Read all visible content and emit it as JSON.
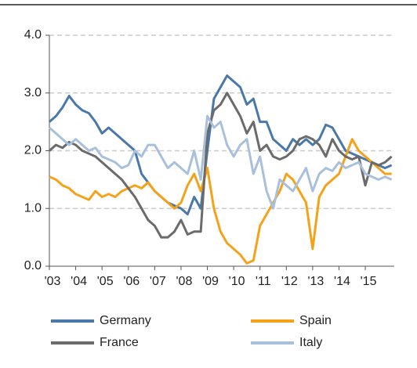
{
  "chart_data": {
    "type": "line",
    "x": [
      2003,
      2003.25,
      2003.5,
      2003.75,
      2004,
      2004.25,
      2004.5,
      2004.75,
      2005,
      2005.25,
      2005.5,
      2005.75,
      2006,
      2006.25,
      2006.5,
      2006.75,
      2007,
      2007.25,
      2007.5,
      2007.75,
      2008,
      2008.25,
      2008.5,
      2008.75,
      2009,
      2009.25,
      2009.5,
      2009.75,
      2010,
      2010.25,
      2010.5,
      2010.75,
      2011,
      2011.25,
      2011.5,
      2011.75,
      2012,
      2012.25,
      2012.5,
      2012.75,
      2013,
      2013.25,
      2013.5,
      2013.75,
      2014,
      2014.25,
      2014.5,
      2014.75,
      2015,
      2015.25,
      2015.5,
      2015.75,
      2016
    ],
    "series": [
      {
        "name": "Germany",
        "color": "#4a78a8",
        "values": [
          2.5,
          2.6,
          2.75,
          2.95,
          2.8,
          2.7,
          2.65,
          2.5,
          2.3,
          2.4,
          2.3,
          2.2,
          2.1,
          2.0,
          1.6,
          1.45,
          1.3,
          1.2,
          1.1,
          1.05,
          1.0,
          0.9,
          1.2,
          1.0,
          2.0,
          2.9,
          3.1,
          3.3,
          3.2,
          3.1,
          2.8,
          2.9,
          2.5,
          2.5,
          2.2,
          2.1,
          2.0,
          2.2,
          2.1,
          2.2,
          2.1,
          2.2,
          2.45,
          2.4,
          2.2,
          2.0,
          1.95,
          1.9,
          1.85,
          1.8,
          1.75,
          1.7,
          1.75
        ]
      },
      {
        "name": "Spain",
        "color": "#f5a21b",
        "values": [
          1.55,
          1.5,
          1.4,
          1.35,
          1.25,
          1.2,
          1.15,
          1.3,
          1.2,
          1.25,
          1.2,
          1.3,
          1.35,
          1.4,
          1.35,
          1.45,
          1.3,
          1.2,
          1.1,
          1.0,
          1.1,
          1.4,
          1.6,
          1.3,
          1.7,
          1.0,
          0.6,
          0.4,
          0.3,
          0.2,
          0.05,
          0.1,
          0.7,
          0.9,
          1.1,
          1.3,
          1.6,
          1.5,
          1.3,
          1.1,
          0.3,
          1.2,
          1.4,
          1.5,
          1.6,
          1.9,
          2.2,
          2.0,
          1.9,
          1.8,
          1.7,
          1.6,
          1.6
        ]
      },
      {
        "name": "France",
        "color": "#6b6b6b",
        "values": [
          2.0,
          2.1,
          2.05,
          2.15,
          2.1,
          2.0,
          1.95,
          1.9,
          1.8,
          1.7,
          1.6,
          1.5,
          1.35,
          1.2,
          1.0,
          0.8,
          0.7,
          0.5,
          0.5,
          0.6,
          0.8,
          0.55,
          0.6,
          0.6,
          2.3,
          2.7,
          2.8,
          3.0,
          2.8,
          2.6,
          2.3,
          2.5,
          2.0,
          2.1,
          1.9,
          1.85,
          1.9,
          2.0,
          2.2,
          2.25,
          2.2,
          2.1,
          1.9,
          2.2,
          2.0,
          1.9,
          1.85,
          1.9,
          1.4,
          1.8,
          1.75,
          1.8,
          1.9
        ]
      },
      {
        "name": "Italy",
        "color": "#a9c0dc",
        "values": [
          2.4,
          2.3,
          2.2,
          2.1,
          2.2,
          2.1,
          2.0,
          2.05,
          1.9,
          1.85,
          1.8,
          1.7,
          1.75,
          2.0,
          1.9,
          2.1,
          2.1,
          1.9,
          1.7,
          1.8,
          1.7,
          1.6,
          2.0,
          1.5,
          2.6,
          2.4,
          2.5,
          2.1,
          1.9,
          2.1,
          2.2,
          1.6,
          1.9,
          1.3,
          1.0,
          1.5,
          1.4,
          1.3,
          1.5,
          1.7,
          1.3,
          1.6,
          1.7,
          1.65,
          1.8,
          1.7,
          1.75,
          1.8,
          1.6,
          1.55,
          1.5,
          1.55,
          1.5
        ]
      }
    ],
    "xlim": [
      2003,
      2016.1
    ],
    "xticks": [
      {
        "value": 2003,
        "label": "'03"
      },
      {
        "value": 2004,
        "label": "'04"
      },
      {
        "value": 2005,
        "label": "'05"
      },
      {
        "value": 2006,
        "label": "'06"
      },
      {
        "value": 2007,
        "label": "'07"
      },
      {
        "value": 2008,
        "label": "'08"
      },
      {
        "value": 2009,
        "label": "'09"
      },
      {
        "value": 2010,
        "label": "'10"
      },
      {
        "value": 2011,
        "label": "'11"
      },
      {
        "value": 2012,
        "label": "'12"
      },
      {
        "value": 2013,
        "label": "'13"
      },
      {
        "value": 2014,
        "label": "'14"
      },
      {
        "value": 2015,
        "label": "'15"
      }
    ],
    "ylim": [
      0,
      4
    ],
    "yticks": [
      {
        "value": 0,
        "label": "0.0"
      },
      {
        "value": 1,
        "label": "1.0"
      },
      {
        "value": 2,
        "label": "2.0"
      },
      {
        "value": 3,
        "label": "3.0"
      },
      {
        "value": 4,
        "label": "4.0"
      }
    ],
    "grid": true
  }
}
